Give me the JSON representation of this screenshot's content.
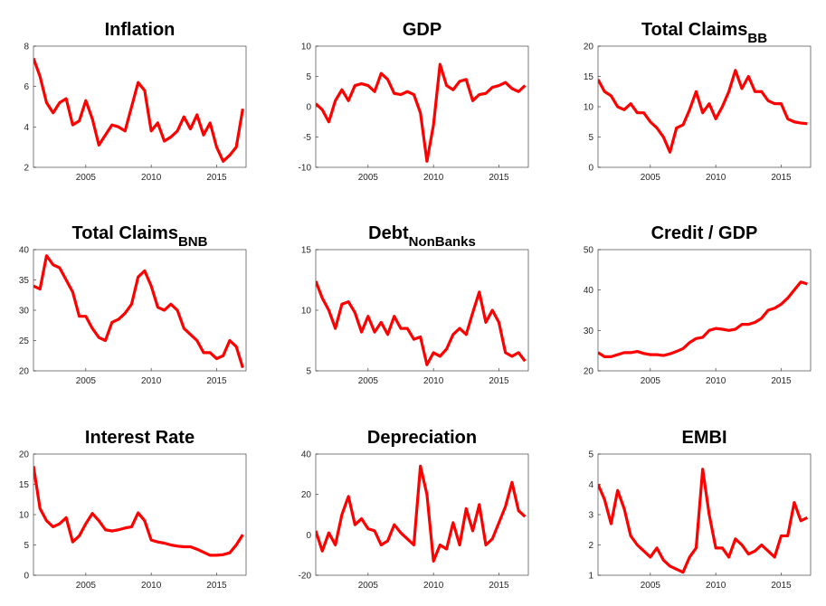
{
  "chart_data": [
    {
      "type": "line",
      "title": "Inflation",
      "color": "#ff0000",
      "xlim": [
        2001,
        2017.25
      ],
      "xticks": [
        2005,
        2010,
        2015
      ],
      "ylim": [
        2,
        8
      ],
      "yticks": [
        2,
        4,
        6,
        8
      ],
      "x": [
        2001,
        2001.5,
        2002,
        2002.5,
        2003,
        2003.5,
        2004,
        2004.5,
        2005,
        2005.5,
        2006,
        2006.5,
        2007,
        2007.5,
        2008,
        2008.5,
        2009,
        2009.5,
        2010,
        2010.5,
        2011,
        2011.5,
        2012,
        2012.5,
        2013,
        2013.5,
        2014,
        2014.5,
        2015,
        2015.5,
        2016,
        2016.5,
        2017
      ],
      "values": [
        7.4,
        6.5,
        5.2,
        4.7,
        5.2,
        5.4,
        4.1,
        4.3,
        5.3,
        4.4,
        3.1,
        3.6,
        4.1,
        4.0,
        3.8,
        5.0,
        6.2,
        5.8,
        3.8,
        4.2,
        3.3,
        3.5,
        3.8,
        4.5,
        3.9,
        4.6,
        3.6,
        4.2,
        3.0,
        2.3,
        2.6,
        3.0,
        4.9
      ]
    },
    {
      "type": "line",
      "title": "GDP",
      "color": "#ff0000",
      "xlim": [
        2001,
        2017.25
      ],
      "xticks": [
        2005,
        2010,
        2015
      ],
      "ylim": [
        -10,
        10
      ],
      "yticks": [
        -10,
        -5,
        0,
        5,
        10
      ],
      "x": [
        2001,
        2001.5,
        2002,
        2002.5,
        2003,
        2003.5,
        2004,
        2004.5,
        2005,
        2005.5,
        2006,
        2006.5,
        2007,
        2007.5,
        2008,
        2008.5,
        2009,
        2009.5,
        2010,
        2010.5,
        2011,
        2011.5,
        2012,
        2012.5,
        2013,
        2013.5,
        2014,
        2014.5,
        2015,
        2015.5,
        2016,
        2016.5,
        2017
      ],
      "values": [
        0.5,
        -0.5,
        -2.5,
        1,
        2.8,
        1,
        3.5,
        3.8,
        3.5,
        2.5,
        5.5,
        4.5,
        2.2,
        2.0,
        2.5,
        2.0,
        -1,
        -9,
        -3,
        7,
        3.5,
        2.8,
        4.2,
        4.5,
        1,
        2,
        2.2,
        3.2,
        3.5,
        4,
        3,
        2.5,
        3.5
      ]
    },
    {
      "type": "line",
      "title": "Total Claims",
      "title_subscript": "BB",
      "color": "#ff0000",
      "xlim": [
        2001,
        2017.25
      ],
      "xticks": [
        2005,
        2010,
        2015
      ],
      "ylim": [
        0,
        20
      ],
      "yticks": [
        0,
        5,
        10,
        15,
        20
      ],
      "x": [
        2001,
        2001.5,
        2002,
        2002.5,
        2003,
        2003.5,
        2004,
        2004.5,
        2005,
        2005.5,
        2006,
        2006.5,
        2007,
        2007.5,
        2008,
        2008.5,
        2009,
        2009.5,
        2010,
        2010.5,
        2011,
        2011.5,
        2012,
        2012.5,
        2013,
        2013.5,
        2014,
        2014.5,
        2015,
        2015.5,
        2016,
        2016.5,
        2017
      ],
      "values": [
        14.5,
        12.5,
        11.8,
        10,
        9.5,
        10.5,
        9,
        9,
        7.5,
        6.5,
        5,
        2.5,
        6.5,
        7,
        9.5,
        12.5,
        9,
        10.5,
        8,
        10,
        12.5,
        16,
        13,
        15,
        12.5,
        12.5,
        11,
        10.5,
        10.5,
        8,
        7.5,
        7.3,
        7.2
      ]
    },
    {
      "type": "line",
      "title": "Total Claims",
      "title_subscript": "BNB",
      "color": "#ff0000",
      "xlim": [
        2001,
        2017.25
      ],
      "xticks": [
        2005,
        2010,
        2015
      ],
      "ylim": [
        20,
        40
      ],
      "yticks": [
        20,
        25,
        30,
        35,
        40
      ],
      "x": [
        2001,
        2001.5,
        2002,
        2002.5,
        2003,
        2003.5,
        2004,
        2004.5,
        2005,
        2005.5,
        2006,
        2006.5,
        2007,
        2007.5,
        2008,
        2008.5,
        2009,
        2009.5,
        2010,
        2010.5,
        2011,
        2011.5,
        2012,
        2012.5,
        2013,
        2013.5,
        2014,
        2014.5,
        2015,
        2015.5,
        2016,
        2016.5,
        2017
      ],
      "values": [
        34,
        33.5,
        39,
        37.5,
        37,
        35,
        33,
        29,
        29,
        27,
        25.5,
        25,
        28,
        28.5,
        29.5,
        31,
        35.5,
        36.5,
        34,
        30.5,
        30,
        31,
        30,
        27,
        26,
        25,
        23,
        23,
        22,
        22.5,
        25,
        24,
        20.5
      ]
    },
    {
      "type": "line",
      "title": "Debt",
      "title_subscript": "NonBanks",
      "color": "#ff0000",
      "xlim": [
        2001,
        2017.25
      ],
      "xticks": [
        2005,
        2010,
        2015
      ],
      "ylim": [
        5,
        15
      ],
      "yticks": [
        5,
        10,
        15
      ],
      "x": [
        2001,
        2001.5,
        2002,
        2002.5,
        2003,
        2003.5,
        2004,
        2004.5,
        2005,
        2005.5,
        2006,
        2006.5,
        2007,
        2007.5,
        2008,
        2008.5,
        2009,
        2009.5,
        2010,
        2010.5,
        2011,
        2011.5,
        2012,
        2012.5,
        2013,
        2013.5,
        2014,
        2014.5,
        2015,
        2015.5,
        2016,
        2016.5,
        2017
      ],
      "values": [
        12.4,
        11,
        10,
        8.5,
        10.5,
        10.7,
        9.8,
        8.2,
        9.5,
        8.2,
        9,
        8,
        9.5,
        8.5,
        8.5,
        7.6,
        7.8,
        5.5,
        6.5,
        6.2,
        6.8,
        8,
        8.5,
        8,
        9.8,
        11.5,
        9,
        10,
        9,
        6.5,
        6.2,
        6.5,
        5.8
      ]
    },
    {
      "type": "line",
      "title": "Credit / GDP",
      "color": "#ff0000",
      "xlim": [
        2001,
        2017.25
      ],
      "xticks": [
        2005,
        2010,
        2015
      ],
      "ylim": [
        20,
        50
      ],
      "yticks": [
        20,
        30,
        40,
        50
      ],
      "x": [
        2001,
        2001.5,
        2002,
        2002.5,
        2003,
        2003.5,
        2004,
        2004.5,
        2005,
        2005.5,
        2006,
        2006.5,
        2007,
        2007.5,
        2008,
        2008.5,
        2009,
        2009.5,
        2010,
        2010.5,
        2011,
        2011.5,
        2012,
        2012.5,
        2013,
        2013.5,
        2014,
        2014.5,
        2015,
        2015.5,
        2016,
        2016.5,
        2017
      ],
      "values": [
        24.5,
        23.5,
        23.5,
        24,
        24.5,
        24.5,
        24.8,
        24.3,
        24,
        24,
        23.8,
        24.2,
        24.8,
        25.5,
        27,
        28,
        28.3,
        30,
        30.5,
        30.3,
        30,
        30.3,
        31.5,
        31.5,
        32,
        33,
        35,
        35.5,
        36.5,
        38,
        40,
        42,
        41.5
      ]
    },
    {
      "type": "line",
      "title": "Interest Rate",
      "color": "#ff0000",
      "xlim": [
        2001,
        2017.25
      ],
      "xticks": [
        2005,
        2010,
        2015
      ],
      "ylim": [
        0,
        20
      ],
      "yticks": [
        0,
        5,
        10,
        15,
        20
      ],
      "x": [
        2001,
        2001.5,
        2002,
        2002.5,
        2003,
        2003.5,
        2004,
        2004.5,
        2005,
        2005.5,
        2006,
        2006.5,
        2007,
        2007.5,
        2008,
        2008.5,
        2009,
        2009.5,
        2010,
        2010.5,
        2011,
        2011.5,
        2012,
        2012.5,
        2013,
        2013.5,
        2014,
        2014.5,
        2015,
        2015.5,
        2016,
        2016.5,
        2017
      ],
      "values": [
        18,
        11,
        9,
        8,
        8.5,
        9.5,
        5.5,
        6.5,
        8.5,
        10.2,
        9,
        7.5,
        7.3,
        7.5,
        7.8,
        8,
        10.3,
        9,
        5.8,
        5.5,
        5.3,
        5,
        4.8,
        4.7,
        4.7,
        4.3,
        3.8,
        3.3,
        3.3,
        3.4,
        3.7,
        5,
        6.7
      ]
    },
    {
      "type": "line",
      "title": "Depreciation",
      "color": "#ff0000",
      "xlim": [
        2001,
        2017.25
      ],
      "xticks": [
        2005,
        2010,
        2015
      ],
      "ylim": [
        -20,
        40
      ],
      "yticks": [
        -20,
        0,
        20,
        40
      ],
      "x": [
        2001,
        2001.5,
        2002,
        2002.5,
        2003,
        2003.5,
        2004,
        2004.5,
        2005,
        2005.5,
        2006,
        2006.5,
        2007,
        2007.5,
        2008,
        2008.5,
        2009,
        2009.5,
        2010,
        2010.5,
        2011,
        2011.5,
        2012,
        2012.5,
        2013,
        2013.5,
        2014,
        2014.5,
        2015,
        2015.5,
        2016,
        2016.5,
        2017
      ],
      "values": [
        2,
        -8,
        1,
        -5,
        10,
        19,
        5,
        8,
        3,
        2,
        -5,
        -3,
        5,
        1,
        -2,
        -5,
        34,
        20,
        -13,
        -5,
        -7,
        6,
        -5,
        13,
        2,
        15,
        -5,
        -2,
        6,
        14,
        26,
        12,
        9
      ]
    },
    {
      "type": "line",
      "title": "EMBI",
      "color": "#ff0000",
      "xlim": [
        2001,
        2017.25
      ],
      "xticks": [
        2005,
        2010,
        2015
      ],
      "ylim": [
        1,
        5
      ],
      "yticks": [
        1,
        2,
        3,
        4,
        5
      ],
      "x": [
        2001,
        2001.5,
        2002,
        2002.5,
        2003,
        2003.5,
        2004,
        2004.5,
        2005,
        2005.5,
        2006,
        2006.5,
        2007,
        2007.5,
        2008,
        2008.5,
        2009,
        2009.5,
        2010,
        2010.5,
        2011,
        2011.5,
        2012,
        2012.5,
        2013,
        2013.5,
        2014,
        2014.5,
        2015,
        2015.5,
        2016,
        2016.5,
        2017
      ],
      "values": [
        4,
        3.5,
        2.7,
        3.8,
        3.2,
        2.3,
        2,
        1.8,
        1.6,
        1.9,
        1.5,
        1.3,
        1.2,
        1.1,
        1.6,
        1.9,
        4.5,
        3.0,
        1.9,
        1.9,
        1.6,
        2.2,
        2.0,
        1.7,
        1.8,
        2.0,
        1.8,
        1.6,
        2.3,
        2.3,
        3.4,
        2.8,
        2.9
      ]
    }
  ]
}
